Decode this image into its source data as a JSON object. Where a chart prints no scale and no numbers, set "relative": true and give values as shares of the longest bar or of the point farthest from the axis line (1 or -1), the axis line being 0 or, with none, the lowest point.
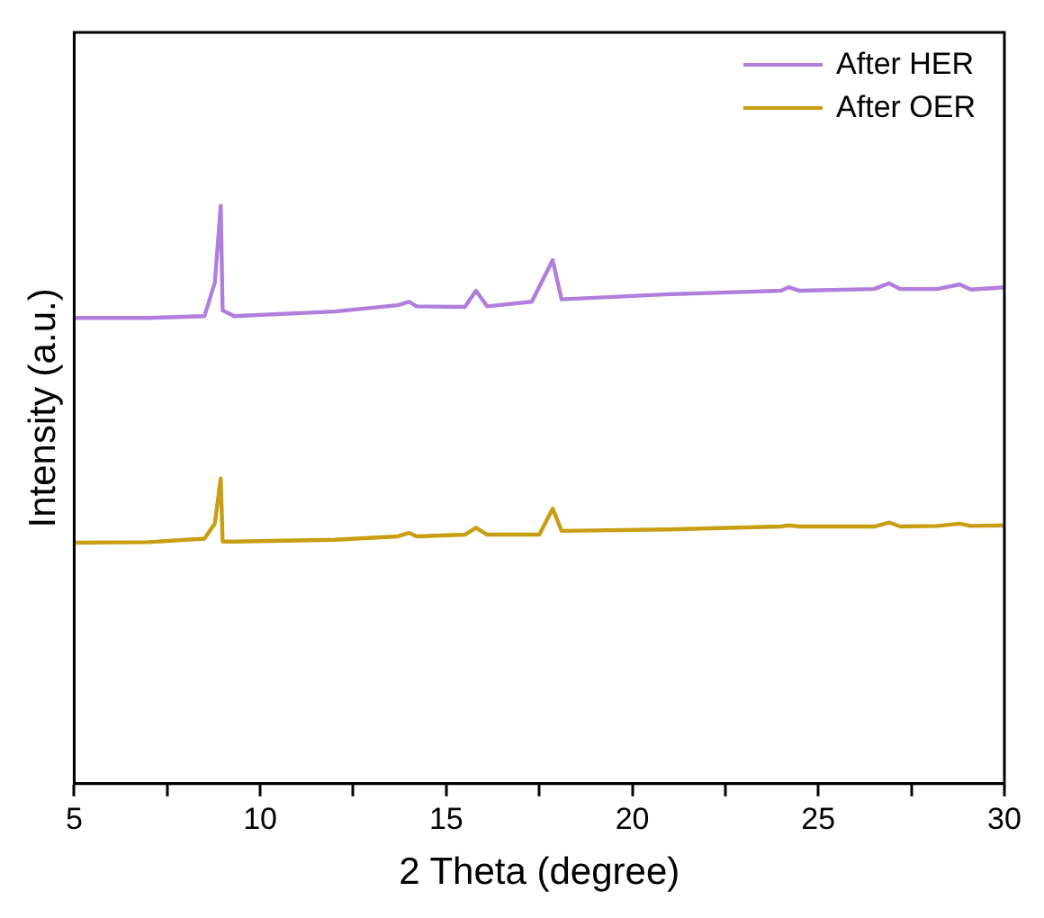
{
  "chart_data": {
    "type": "line",
    "xlabel": "2 Theta (degree)",
    "ylabel": "Intensity (a.u.)",
    "relative": true,
    "xlim": [
      5,
      30
    ],
    "xticks": [
      5,
      {
        "value": 7.5,
        "label": null
      },
      10,
      {
        "value": 12.5,
        "label": null
      },
      15,
      {
        "value": 17.5,
        "label": null
      },
      20,
      {
        "value": 22.5,
        "label": null
      },
      25,
      {
        "value": 27.5,
        "label": null
      },
      30
    ],
    "grid": false,
    "legend": "top right",
    "marker": "none",
    "line_style": "solid",
    "series": [
      {
        "name": "After HER",
        "color": "#b07fdc",
        "x": [
          5,
          7,
          8.5,
          8.78,
          8.94,
          8.99,
          9.3,
          12,
          13.7,
          14.0,
          14.2,
          15.5,
          15.8,
          16.1,
          17.3,
          17.86,
          18.1,
          21,
          24.0,
          24.2,
          24.5,
          26.5,
          26.9,
          27.2,
          28.2,
          28.8,
          29.1,
          30
        ],
        "values": [
          0.806,
          0.806,
          0.809,
          0.867,
          1,
          0.819,
          0.809,
          0.817,
          0.828,
          0.834,
          0.826,
          0.825,
          0.853,
          0.826,
          0.834,
          0.906,
          0.838,
          0.847,
          0.853,
          0.859,
          0.853,
          0.856,
          0.866,
          0.856,
          0.856,
          0.864,
          0.855,
          0.859
        ]
      },
      {
        "name": "After OER",
        "color": "#c89e12",
        "x": [
          5,
          7,
          8.5,
          8.78,
          8.94,
          8.99,
          9.3,
          12,
          13.7,
          14.0,
          14.2,
          15.5,
          15.8,
          16.1,
          17.5,
          17.86,
          18.1,
          21,
          24.0,
          24.2,
          24.5,
          26.5,
          26.9,
          27.2,
          28.2,
          28.8,
          29.1,
          30
        ],
        "values": [
          0.417,
          0.418,
          0.424,
          0.45,
          0.528,
          0.419,
          0.419,
          0.422,
          0.428,
          0.434,
          0.428,
          0.431,
          0.443,
          0.431,
          0.431,
          0.476,
          0.4375,
          0.44,
          0.445,
          0.447,
          0.445,
          0.445,
          0.452,
          0.445,
          0.446,
          0.45,
          0.446,
          0.447
        ]
      }
    ]
  }
}
